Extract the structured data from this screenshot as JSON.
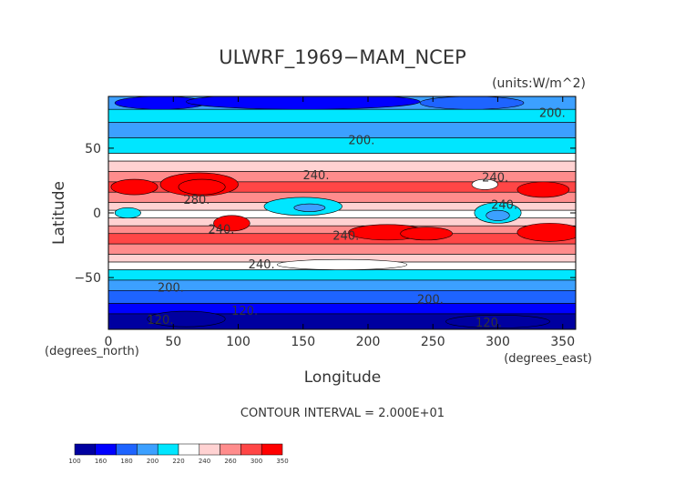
{
  "chart_data": {
    "type": "heatmap",
    "title": "ULWRF_1969−MAM_NCEP",
    "units": "(units:W/m^2)",
    "xlabel": "Longitude",
    "ylabel": "Latitude",
    "x_unit_label": "(degrees_east)",
    "y_unit_label": "(degrees_north)",
    "xlim": [
      0,
      360
    ],
    "ylim": [
      -90,
      90
    ],
    "x_ticks": [
      0,
      50,
      100,
      150,
      200,
      250,
      300,
      350
    ],
    "x_tick_labels": [
      "0",
      "50",
      "100",
      "150",
      "200",
      "250",
      "300",
      "350"
    ],
    "y_ticks": [
      50,
      0,
      -50
    ],
    "y_tick_labels": [
      "50",
      "0",
      "−50"
    ],
    "contour_interval_text": "CONTOUR INTERVAL = 2.000E+01",
    "contour_labels": [
      {
        "text": "200.",
        "lon": 195,
        "lat": 56
      },
      {
        "text": "200.",
        "lon": 342,
        "lat": 77
      },
      {
        "text": "240.",
        "lon": 160,
        "lat": 29
      },
      {
        "text": "240.",
        "lon": 298,
        "lat": 27
      },
      {
        "text": "240.",
        "lon": 305,
        "lat": 6
      },
      {
        "text": "280.",
        "lon": 68,
        "lat": 10
      },
      {
        "text": "240.",
        "lon": 87,
        "lat": -13
      },
      {
        "text": "240.",
        "lon": 183,
        "lat": -18
      },
      {
        "text": "240.",
        "lon": 118,
        "lat": -40
      },
      {
        "text": "200.",
        "lon": 48,
        "lat": -58
      },
      {
        "text": "200.",
        "lon": 248,
        "lat": -67
      },
      {
        "text": "120.",
        "lon": 105,
        "lat": -76
      },
      {
        "text": "120.",
        "lon": 40,
        "lat": -83
      },
      {
        "text": "120.",
        "lon": 293,
        "lat": -85
      }
    ],
    "contour_levels": [
      100,
      160,
      180,
      200,
      220,
      240,
      260,
      300,
      350
    ],
    "colorbar": {
      "labels": [
        "100",
        "160",
        "180",
        "200",
        "220",
        "240",
        "260",
        "300",
        "350"
      ],
      "colors": [
        "#0000a0",
        "#0000ff",
        "#1e64ff",
        "#3ca0ff",
        "#00e6ff",
        "#ffffff",
        "#ffd2d2",
        "#ff8c8c",
        "#ff4646",
        "#ff0000"
      ]
    }
  }
}
